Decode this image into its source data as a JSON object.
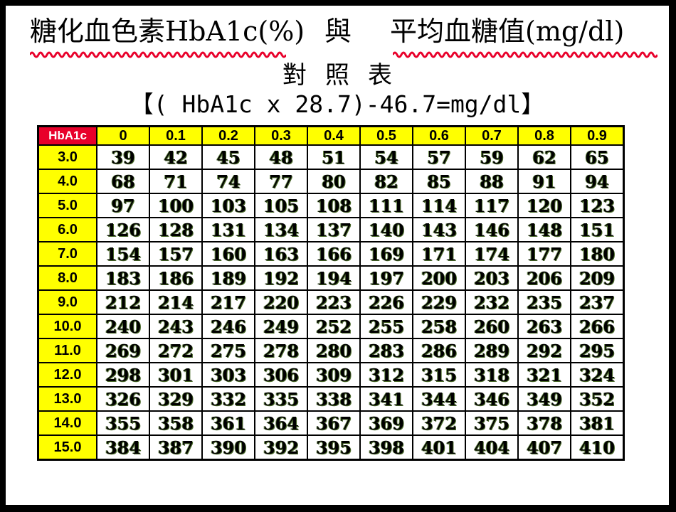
{
  "title": {
    "left": "糖化血色素HbA1c(%)",
    "mid": "與",
    "right": "平均血糖值(mg/dl)"
  },
  "subtitle": "對照表",
  "formula": "【( HbA1c x 28.7)-46.7=mg/dl】",
  "colors": {
    "corner_bg": "#e8002a",
    "header_bg": "#ffff00",
    "squiggle": "#e8002a",
    "frame": "#000000"
  },
  "table": {
    "corner": "HbA1c",
    "columns": [
      "0",
      "0.1",
      "0.2",
      "0.3",
      "0.4",
      "0.5",
      "0.6",
      "0.7",
      "0.8",
      "0.9"
    ],
    "rows": [
      {
        "label": "3.0",
        "values": [
          "39",
          "42",
          "45",
          "48",
          "51",
          "54",
          "57",
          "59",
          "62",
          "65"
        ]
      },
      {
        "label": "4.0",
        "values": [
          "68",
          "71",
          "74",
          "77",
          "80",
          "82",
          "85",
          "88",
          "91",
          "94"
        ]
      },
      {
        "label": "5.0",
        "values": [
          "97",
          "100",
          "103",
          "105",
          "108",
          "111",
          "114",
          "117",
          "120",
          "123"
        ]
      },
      {
        "label": "6.0",
        "values": [
          "126",
          "128",
          "131",
          "134",
          "137",
          "140",
          "143",
          "146",
          "148",
          "151"
        ]
      },
      {
        "label": "7.0",
        "values": [
          "154",
          "157",
          "160",
          "163",
          "166",
          "169",
          "171",
          "174",
          "177",
          "180"
        ]
      },
      {
        "label": "8.0",
        "values": [
          "183",
          "186",
          "189",
          "192",
          "194",
          "197",
          "200",
          "203",
          "206",
          "209"
        ]
      },
      {
        "label": "9.0",
        "values": [
          "212",
          "214",
          "217",
          "220",
          "223",
          "226",
          "229",
          "232",
          "235",
          "237"
        ]
      },
      {
        "label": "10.0",
        "values": [
          "240",
          "243",
          "246",
          "249",
          "252",
          "255",
          "258",
          "260",
          "263",
          "266"
        ]
      },
      {
        "label": "11.0",
        "values": [
          "269",
          "272",
          "275",
          "278",
          "280",
          "283",
          "286",
          "289",
          "292",
          "295"
        ]
      },
      {
        "label": "12.0",
        "values": [
          "298",
          "301",
          "303",
          "306",
          "309",
          "312",
          "315",
          "318",
          "321",
          "324"
        ]
      },
      {
        "label": "13.0",
        "values": [
          "326",
          "329",
          "332",
          "335",
          "338",
          "341",
          "344",
          "346",
          "349",
          "352"
        ]
      },
      {
        "label": "14.0",
        "values": [
          "355",
          "358",
          "361",
          "364",
          "367",
          "369",
          "372",
          "375",
          "378",
          "381"
        ]
      },
      {
        "label": "15.0",
        "values": [
          "384",
          "387",
          "390",
          "392",
          "395",
          "398",
          "401",
          "404",
          "407",
          "410"
        ]
      }
    ]
  }
}
